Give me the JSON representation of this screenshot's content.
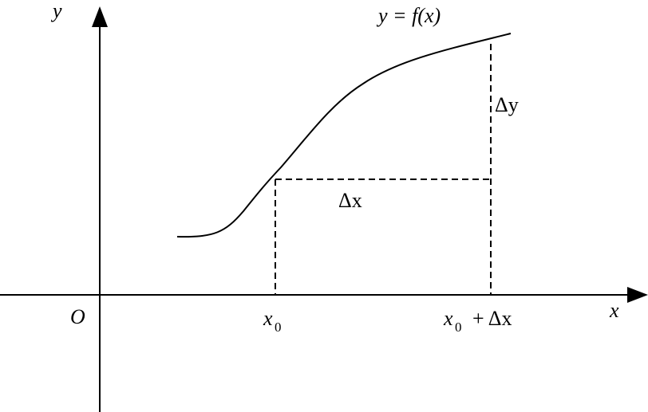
{
  "diagram": {
    "y_axis_label": "y",
    "x_axis_label": "x",
    "origin_label": "O",
    "function_label": "y = f(x)",
    "delta_y_label": "Δy",
    "delta_x_label": "Δx",
    "x0_label": "x",
    "x0_subscript": "0",
    "x0_plus_label_base": "x",
    "x0_plus_subscript": "0",
    "x0_plus_suffix": "+ Δx"
  }
}
